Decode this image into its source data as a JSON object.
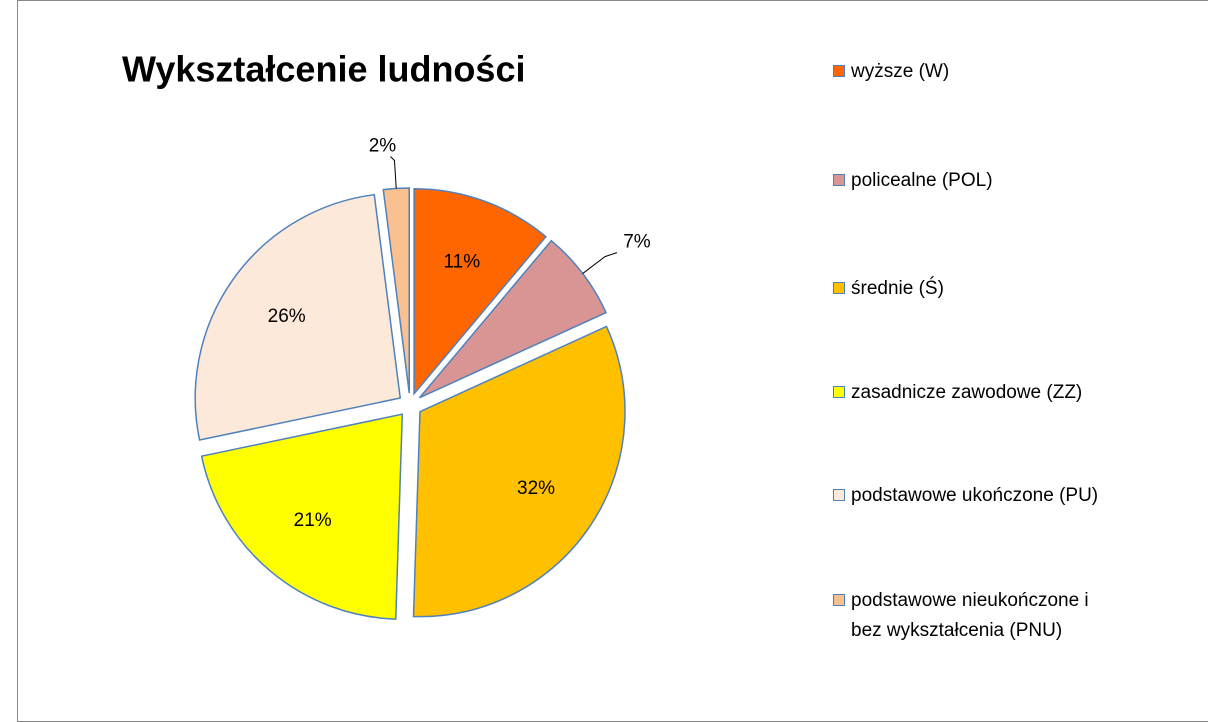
{
  "chart_data": {
    "type": "pie",
    "title": "Wykształcenie ludności",
    "categories": [
      "wyższe (W)",
      "policealne (POL)",
      "średnie (Ś)",
      "zasadnicze zawodowe (ZZ)",
      "podstawowe ukończone (PU)",
      "podstawowe nieukończone i bez wykształcenia (PNU)"
    ],
    "values": [
      11,
      7,
      32,
      21,
      26,
      2
    ],
    "value_labels": [
      "11%",
      "7%",
      "32%",
      "21%",
      "26%",
      "2%"
    ],
    "colors": [
      "#ff6600",
      "#d99594",
      "#ffc000",
      "#ffff00",
      "#fde9d9",
      "#fac090"
    ],
    "legend": "right"
  }
}
